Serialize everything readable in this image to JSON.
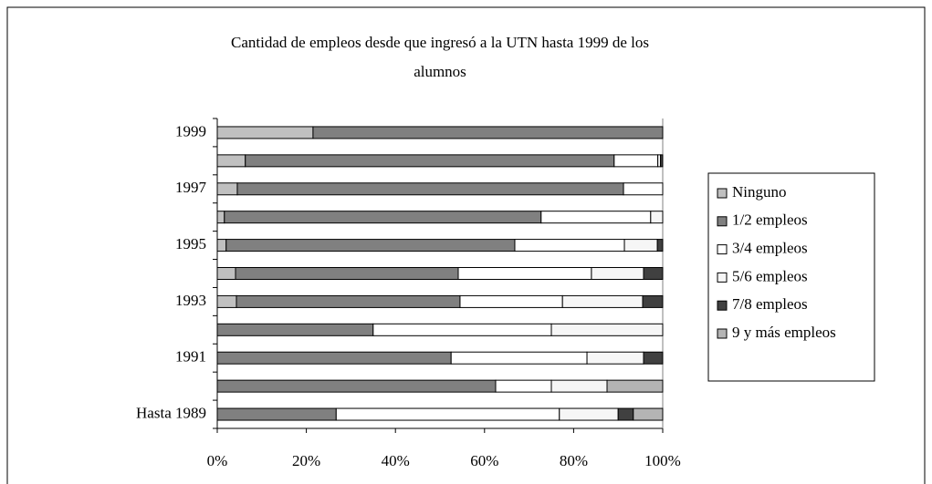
{
  "chart_data": {
    "type": "stacked_barh",
    "title": "Cantidad de empleos desde que ingresó a la UTN hasta 1999 de los alumnos",
    "categories": [
      "Hasta 1989",
      null,
      "1991",
      null,
      "1993",
      null,
      "1995",
      null,
      "1997",
      null,
      "1999"
    ],
    "series": [
      {
        "name": "Ninguno",
        "color": "#c0c0c0",
        "values": [
          0,
          0,
          0,
          0,
          4.3,
          4.1,
          2.0,
          1.6,
          4.5,
          6.3,
          21.5
        ]
      },
      {
        "name": "1/2 empleos",
        "color": "#808080",
        "values": [
          26.7,
          62.5,
          52.5,
          35.0,
          50.2,
          50.0,
          64.8,
          71.1,
          86.7,
          82.8,
          78.5
        ]
      },
      {
        "name": "3/4 empleos",
        "color": "#ffffff",
        "values": [
          50.1,
          12.5,
          30.5,
          40.0,
          23.0,
          29.9,
          24.6,
          24.6,
          8.8,
          9.8,
          0
        ]
      },
      {
        "name": "5/6 empleos",
        "color": "#f6f6f6",
        "values": [
          13.2,
          12.5,
          12.7,
          25.0,
          18.0,
          11.7,
          7.4,
          2.7,
          0,
          0.6,
          0
        ]
      },
      {
        "name": "7/8 empleos",
        "color": "#404040",
        "values": [
          3.4,
          0,
          4.3,
          0,
          4.5,
          4.3,
          1.2,
          0,
          0,
          0.5,
          0
        ]
      },
      {
        "name": "9 y más empleos",
        "color": "#b4b4b4",
        "values": [
          6.6,
          12.5,
          0,
          0,
          0,
          0,
          0,
          0,
          0,
          0,
          0
        ]
      }
    ],
    "xlim": [
      0,
      100
    ],
    "xticks": [
      {
        "value": 0,
        "label": "0%"
      },
      {
        "value": 20,
        "label": "20%"
      },
      {
        "value": 40,
        "label": "40%"
      },
      {
        "value": 60,
        "label": "60%"
      },
      {
        "value": 80,
        "label": "80%"
      },
      {
        "value": 100,
        "label": "100%"
      }
    ],
    "legend": "right",
    "grid": false
  }
}
